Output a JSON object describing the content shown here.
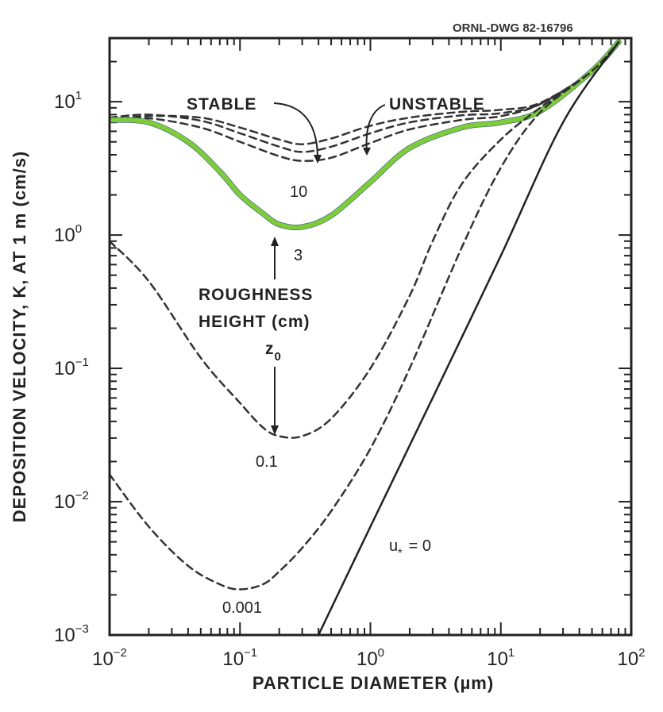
{
  "drawing_number": "ORNL-DWG 82-16796",
  "chart_data": {
    "type": "line",
    "xlabel": "PARTICLE DIAMETER (µm)",
    "ylabel": "DEPOSITION VELOCITY, K, AT 1 m (cm/s)",
    "xscale": "log",
    "yscale": "log",
    "xlim": [
      0.01,
      100
    ],
    "ylim": [
      0.001,
      30
    ],
    "x_ticks": [
      {
        "base": "10",
        "exp": "−2",
        "value": 0.01
      },
      {
        "base": "10",
        "exp": "−1",
        "value": 0.1
      },
      {
        "base": "10",
        "exp": "0",
        "value": 1
      },
      {
        "base": "10",
        "exp": "1",
        "value": 10
      },
      {
        "base": "10",
        "exp": "2",
        "value": 100
      }
    ],
    "y_ticks": [
      {
        "base": "10",
        "exp": "1",
        "value": 10
      },
      {
        "base": "10",
        "exp": "0",
        "value": 1
      },
      {
        "base": "10",
        "exp": "−1",
        "value": 0.1
      },
      {
        "base": "10",
        "exp": "−2",
        "value": 0.01
      },
      {
        "base": "10",
        "exp": "−3",
        "value": 0.001
      }
    ],
    "grid": false,
    "series": [
      {
        "label": "10",
        "style": "dashed",
        "color": "#333333",
        "points": [
          [
            0.01,
            7.2
          ],
          [
            0.02,
            7.5
          ],
          [
            0.05,
            6.4
          ],
          [
            0.1,
            5.0
          ],
          [
            0.2,
            3.9
          ],
          [
            0.3,
            3.6
          ],
          [
            0.5,
            3.8
          ],
          [
            1,
            4.9
          ],
          [
            2,
            6.2
          ],
          [
            5,
            7.3
          ],
          [
            10,
            7.8
          ],
          [
            20,
            9.6
          ],
          [
            50,
            17
          ],
          [
            80,
            28
          ]
        ]
      },
      {
        "label": "10",
        "style": "dashed",
        "color": "#333333",
        "points": [
          [
            0.01,
            7.6
          ],
          [
            0.02,
            8.0
          ],
          [
            0.05,
            7.2
          ],
          [
            0.1,
            5.8
          ],
          [
            0.2,
            4.6
          ],
          [
            0.3,
            4.2
          ],
          [
            0.5,
            4.6
          ],
          [
            1,
            5.8
          ],
          [
            2,
            7.0
          ],
          [
            5,
            7.9
          ],
          [
            10,
            8.2
          ],
          [
            20,
            9.6
          ],
          [
            50,
            17
          ],
          [
            80,
            28
          ]
        ]
      },
      {
        "label": "10",
        "style": "dashed",
        "color": "#333333",
        "points": [
          [
            0.01,
            7.3
          ],
          [
            0.02,
            7.8
          ],
          [
            0.05,
            7.6
          ],
          [
            0.1,
            6.4
          ],
          [
            0.2,
            5.2
          ],
          [
            0.3,
            4.8
          ],
          [
            0.5,
            5.3
          ],
          [
            1,
            6.6
          ],
          [
            2,
            7.6
          ],
          [
            5,
            8.4
          ],
          [
            10,
            8.7
          ],
          [
            20,
            9.8
          ],
          [
            50,
            17
          ],
          [
            80,
            28
          ]
        ]
      },
      {
        "label": "3",
        "style": "solid",
        "color": "#7dcc3a",
        "points": [
          [
            0.01,
            7.3
          ],
          [
            0.02,
            7.0
          ],
          [
            0.04,
            5.0
          ],
          [
            0.07,
            3.0
          ],
          [
            0.1,
            2.0
          ],
          [
            0.15,
            1.45
          ],
          [
            0.2,
            1.2
          ],
          [
            0.3,
            1.15
          ],
          [
            0.5,
            1.4
          ],
          [
            1,
            2.5
          ],
          [
            2,
            4.5
          ],
          [
            5,
            6.4
          ],
          [
            10,
            7.0
          ],
          [
            20,
            8.5
          ],
          [
            50,
            17
          ],
          [
            80,
            28
          ]
        ]
      },
      {
        "label": "0.1",
        "style": "dashed",
        "color": "#333333",
        "points": [
          [
            0.01,
            0.9
          ],
          [
            0.02,
            0.45
          ],
          [
            0.05,
            0.12
          ],
          [
            0.1,
            0.055
          ],
          [
            0.15,
            0.036
          ],
          [
            0.2,
            0.031
          ],
          [
            0.3,
            0.031
          ],
          [
            0.5,
            0.042
          ],
          [
            1,
            0.1
          ],
          [
            2,
            0.35
          ],
          [
            3,
            0.9
          ],
          [
            5,
            2.4
          ],
          [
            10,
            5.2
          ],
          [
            20,
            9.0
          ],
          [
            50,
            17
          ],
          [
            80,
            28
          ]
        ]
      },
      {
        "label": "0.001",
        "style": "dashed",
        "color": "#333333",
        "points": [
          [
            0.01,
            0.016
          ],
          [
            0.02,
            0.0065
          ],
          [
            0.04,
            0.0033
          ],
          [
            0.07,
            0.0024
          ],
          [
            0.1,
            0.0022
          ],
          [
            0.15,
            0.0024
          ],
          [
            0.2,
            0.003
          ],
          [
            0.3,
            0.0045
          ],
          [
            0.5,
            0.0085
          ],
          [
            1,
            0.025
          ],
          [
            2,
            0.1
          ],
          [
            5,
            0.8
          ],
          [
            10,
            3.2
          ],
          [
            20,
            8.3
          ],
          [
            50,
            17
          ],
          [
            80,
            28
          ]
        ]
      },
      {
        "label": "u* = 0",
        "style": "solid",
        "color": "#222222",
        "points": [
          [
            0.4,
            0.001
          ],
          [
            1,
            0.0065
          ],
          [
            3,
            0.06
          ],
          [
            10,
            0.7
          ],
          [
            30,
            7.0
          ],
          [
            80,
            28
          ]
        ]
      }
    ],
    "annotations": {
      "stable": "STABLE",
      "unstable": "UNSTABLE",
      "label_10": "10",
      "label_3": "3",
      "roughness_line1": "ROUGHNESS",
      "roughness_line2": "HEIGHT (cm)",
      "z0": "z",
      "z0_sub": "0",
      "label_0_1": "0.1",
      "label_0_001": "0.001",
      "ustar_u": "u",
      "ustar_star": "*",
      "ustar_eq": "= 0"
    }
  }
}
